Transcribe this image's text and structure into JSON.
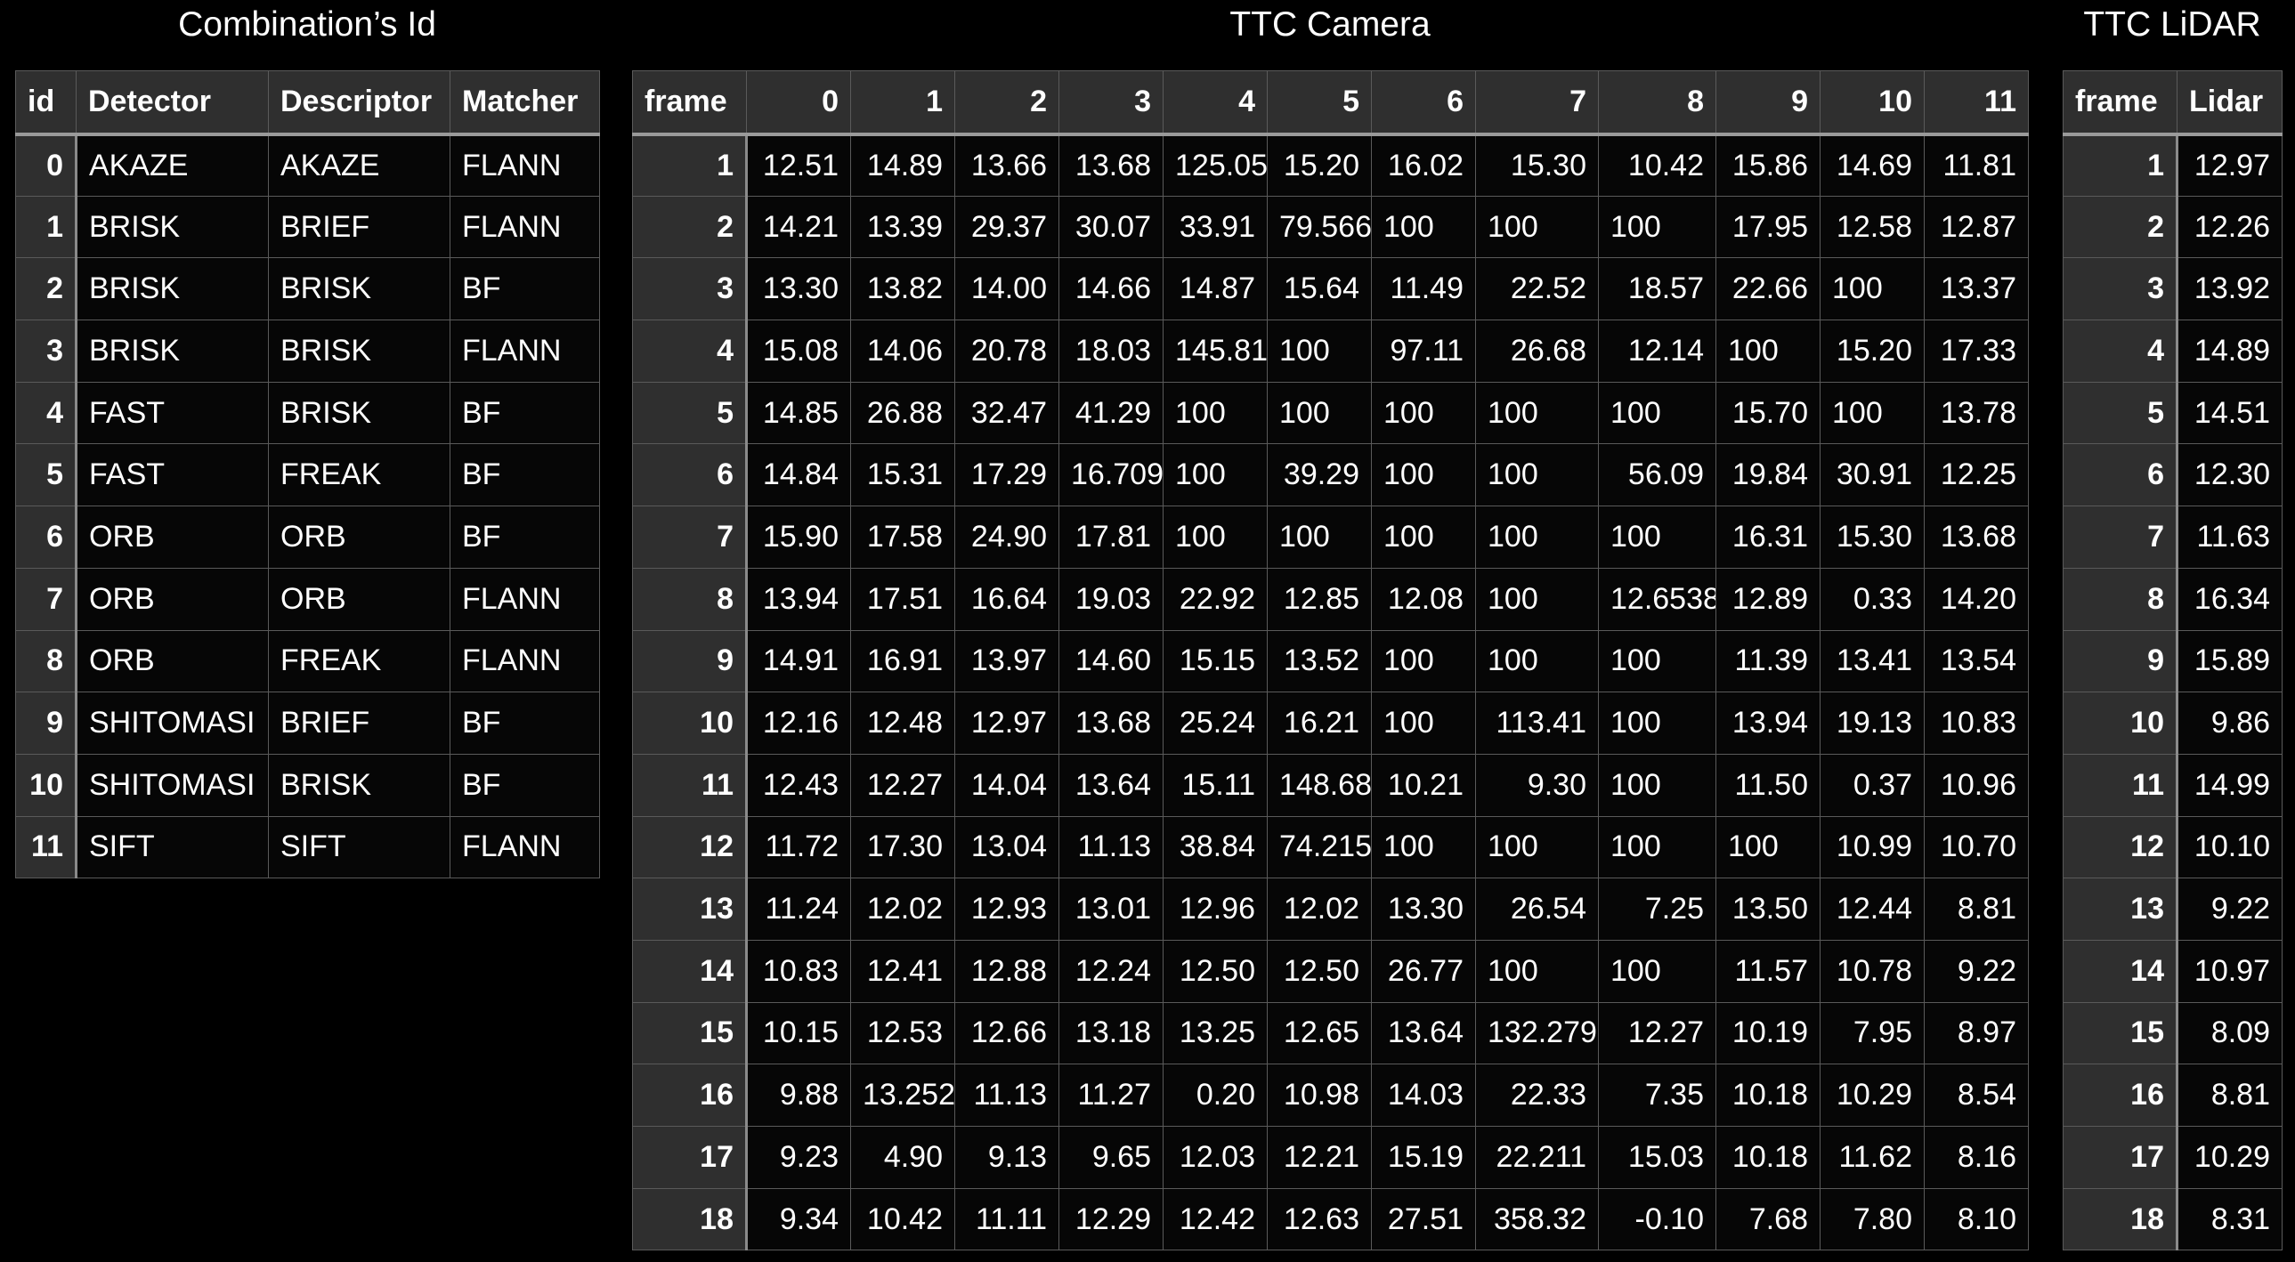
{
  "titles": {
    "combination": "Combination’s Id",
    "camera": "TTC Camera",
    "lidar": "TTC LiDAR"
  },
  "combination_table": {
    "headers": [
      "id",
      "Detector",
      "Descriptor",
      "Matcher"
    ],
    "rows": [
      [
        "0",
        "AKAZE",
        "AKAZE",
        "FLANN"
      ],
      [
        "1",
        "BRISK",
        "BRIEF",
        "FLANN"
      ],
      [
        "2",
        "BRISK",
        "BRISK",
        "BF"
      ],
      [
        "3",
        "BRISK",
        "BRISK",
        "FLANN"
      ],
      [
        "4",
        "FAST",
        "BRISK",
        "BF"
      ],
      [
        "5",
        "FAST",
        "FREAK",
        "BF"
      ],
      [
        "6",
        "ORB",
        "ORB",
        "BF"
      ],
      [
        "7",
        "ORB",
        "ORB",
        "FLANN"
      ],
      [
        "8",
        "ORB",
        "FREAK",
        "FLANN"
      ],
      [
        "9",
        "SHITOMASI",
        "BRIEF",
        "BF"
      ],
      [
        "10",
        "SHITOMASI",
        "BRISK",
        "BF"
      ],
      [
        "11",
        "SIFT",
        "SIFT",
        "FLANN"
      ]
    ]
  },
  "camera_table": {
    "headers": [
      "frame",
      "0",
      "1",
      "2",
      "3",
      "4",
      "5",
      "6",
      "7",
      "8",
      "9",
      "10",
      "11"
    ],
    "rows": [
      [
        "1",
        "12.51",
        "14.89",
        "13.66",
        "13.68",
        "125.05",
        "15.20",
        "16.02",
        "15.30",
        "10.42",
        "15.86",
        "14.69",
        "11.81"
      ],
      [
        "2",
        "14.21",
        "13.39",
        "29.37",
        "30.07",
        "33.91",
        "79.566",
        "100",
        "100",
        "100",
        "17.95",
        "12.58",
        "12.87"
      ],
      [
        "3",
        "13.30",
        "13.82",
        "14.00",
        "14.66",
        "14.87",
        "15.64",
        "11.49",
        "22.52",
        "18.57",
        "22.66",
        "100",
        "13.37"
      ],
      [
        "4",
        "15.08",
        "14.06",
        "20.78",
        "18.03",
        "145.81",
        "100",
        "97.11",
        "26.68",
        "12.14",
        "100",
        "15.20",
        "17.33"
      ],
      [
        "5",
        "14.85",
        "26.88",
        "32.47",
        "41.29",
        "100",
        "100",
        "100",
        "100",
        "100",
        "15.70",
        "100",
        "13.78"
      ],
      [
        "6",
        "14.84",
        "15.31",
        "17.29",
        "16.709",
        "100",
        "39.29",
        "100",
        "100",
        "56.09",
        "19.84",
        "30.91",
        "12.25"
      ],
      [
        "7",
        "15.90",
        "17.58",
        "24.90",
        "17.81",
        "100",
        "100",
        "100",
        "100",
        "100",
        "16.31",
        "15.30",
        "13.68"
      ],
      [
        "8",
        "13.94",
        "17.51",
        "16.64",
        "19.03",
        "22.92",
        "12.85",
        "12.08",
        "100",
        "12.6538",
        "12.89",
        "0.33",
        "14.20"
      ],
      [
        "9",
        "14.91",
        "16.91",
        "13.97",
        "14.60",
        "15.15",
        "13.52",
        "100",
        "100",
        "100",
        "11.39",
        "13.41",
        "13.54"
      ],
      [
        "10",
        "12.16",
        "12.48",
        "12.97",
        "13.68",
        "25.24",
        "16.21",
        "100",
        "113.41",
        "100",
        "13.94",
        "19.13",
        "10.83"
      ],
      [
        "11",
        "12.43",
        "12.27",
        "14.04",
        "13.64",
        "15.11",
        "148.68",
        "10.21",
        "9.30",
        "100",
        "11.50",
        "0.37",
        "10.96"
      ],
      [
        "12",
        "11.72",
        "17.30",
        "13.04",
        "11.13",
        "38.84",
        "74.215",
        "100",
        "100",
        "100",
        "100",
        "10.99",
        "10.70"
      ],
      [
        "13",
        "11.24",
        "12.02",
        "12.93",
        "13.01",
        "12.96",
        "12.02",
        "13.30",
        "26.54",
        "7.25",
        "13.50",
        "12.44",
        "8.81"
      ],
      [
        "14",
        "10.83",
        "12.41",
        "12.88",
        "12.24",
        "12.50",
        "12.50",
        "26.77",
        "100",
        "100",
        "11.57",
        "10.78",
        "9.22"
      ],
      [
        "15",
        "10.15",
        "12.53",
        "12.66",
        "13.18",
        "13.25",
        "12.65",
        "13.64",
        "132.279",
        "12.27",
        "10.19",
        "7.95",
        "8.97"
      ],
      [
        "16",
        "9.88",
        "13.252",
        "11.13",
        "11.27",
        "0.20",
        "10.98",
        "14.03",
        "22.33",
        "7.35",
        "10.18",
        "10.29",
        "8.54"
      ],
      [
        "17",
        "9.23",
        "4.90",
        "9.13",
        "9.65",
        "12.03",
        "12.21",
        "15.19",
        "22.211",
        "15.03",
        "10.18",
        "11.62",
        "8.16"
      ],
      [
        "18",
        "9.34",
        "10.42",
        "11.11",
        "12.29",
        "12.42",
        "12.63",
        "27.51",
        "358.32",
        "-0.10",
        "7.68",
        "7.80",
        "8.10"
      ]
    ]
  },
  "lidar_table": {
    "headers": [
      "frame",
      "Lidar"
    ],
    "rows": [
      [
        "1",
        "12.97"
      ],
      [
        "2",
        "12.26"
      ],
      [
        "3",
        "13.92"
      ],
      [
        "4",
        "14.89"
      ],
      [
        "5",
        "14.51"
      ],
      [
        "6",
        "12.30"
      ],
      [
        "7",
        "11.63"
      ],
      [
        "8",
        "16.34"
      ],
      [
        "9",
        "15.89"
      ],
      [
        "10",
        "9.86"
      ],
      [
        "11",
        "14.99"
      ],
      [
        "12",
        "10.10"
      ],
      [
        "13",
        "9.22"
      ],
      [
        "14",
        "10.97"
      ],
      [
        "15",
        "8.09"
      ],
      [
        "16",
        "8.81"
      ],
      [
        "17",
        "10.29"
      ],
      [
        "18",
        "8.31"
      ]
    ]
  }
}
